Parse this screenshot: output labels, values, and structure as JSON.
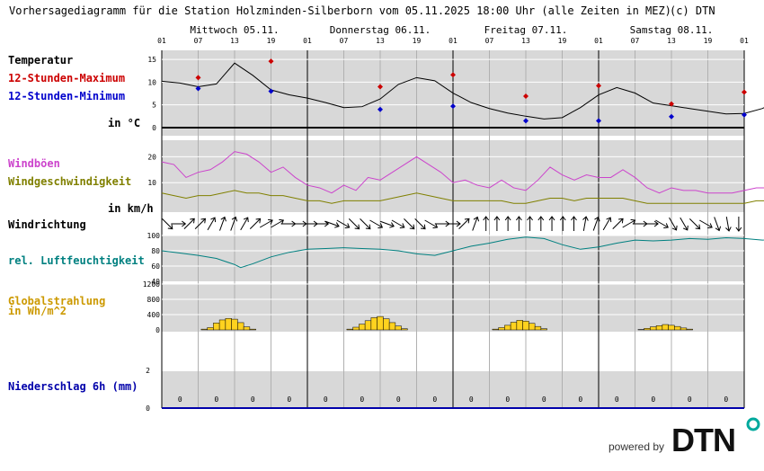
{
  "header": {
    "title": "Vorhersagediagramm für die Station Holzminden-Silberborn vom 05.11.2025 18:00 Uhr (alle Zeiten in MEZ)",
    "copyright": "(c) DTN"
  },
  "colors": {
    "temp": "#000000",
    "max": "#cc0000",
    "min": "#0000cc",
    "gust": "#cc44cc",
    "wind": "#808000",
    "humidity": "#008080",
    "radiation": "#ffd21f",
    "radiation_label": "#cc9900",
    "precip": "#0000aa",
    "panel": "#d8d8d8",
    "grid": "#ffffff",
    "dayline": "#000000",
    "hourline": "#b0b0b0"
  },
  "chart_data": {
    "type": "line",
    "x_ticks": [
      "01",
      "07",
      "13",
      "19",
      "01",
      "07",
      "13",
      "19",
      "01",
      "07",
      "13",
      "19",
      "01",
      "07",
      "13",
      "19",
      "01"
    ],
    "days": [
      "Mittwoch 05.11.",
      "Donnerstag 06.11.",
      "Freitag 07.11.",
      "Samstag 08.11."
    ],
    "temperature": {
      "label": "Temperatur",
      "unit": "in °C",
      "yticks": [
        "15",
        "10",
        "5",
        "0"
      ],
      "ylim": [
        -1,
        17
      ],
      "curve": [
        [
          1,
          10.2
        ],
        [
          4,
          9.8
        ],
        [
          7,
          9.0
        ],
        [
          10,
          9.6
        ],
        [
          13,
          14.2
        ],
        [
          16,
          11.5
        ],
        [
          19,
          8.3
        ],
        [
          22,
          7.2
        ],
        [
          25,
          6.5
        ],
        [
          28,
          5.5
        ],
        [
          31,
          4.4
        ],
        [
          34,
          4.6
        ],
        [
          37,
          6.3
        ],
        [
          40,
          9.5
        ],
        [
          43,
          11.0
        ],
        [
          46,
          10.3
        ],
        [
          49,
          7.6
        ],
        [
          52,
          5.5
        ],
        [
          55,
          4.2
        ],
        [
          58,
          3.2
        ],
        [
          61,
          2.5
        ],
        [
          64,
          1.9
        ],
        [
          67,
          2.2
        ],
        [
          70,
          4.4
        ],
        [
          73,
          7.2
        ],
        [
          76,
          8.8
        ],
        [
          79,
          7.6
        ],
        [
          82,
          5.4
        ],
        [
          85,
          4.8
        ],
        [
          88,
          4.2
        ],
        [
          91,
          3.6
        ],
        [
          94,
          3.0
        ],
        [
          97,
          3.1
        ],
        [
          100,
          4.2
        ],
        [
          103,
          6.3
        ],
        [
          106,
          7.4
        ],
        [
          109,
          6.8
        ],
        [
          112,
          6.5
        ],
        [
          115,
          6.2
        ],
        [
          118,
          5.8
        ],
        [
          121,
          6.1
        ]
      ],
      "max_label": "12-Stunden-Maximum",
      "max_points": [
        [
          7,
          11.0
        ],
        [
          19,
          14.6
        ],
        [
          37,
          9.0
        ],
        [
          49,
          11.6
        ],
        [
          61,
          6.9
        ],
        [
          73,
          9.2
        ],
        [
          85,
          5.2
        ],
        [
          97,
          7.8
        ]
      ],
      "min_label": "12-Stunden-Minimum",
      "min_points": [
        [
          7,
          8.6
        ],
        [
          19,
          8.0
        ],
        [
          37,
          4.0
        ],
        [
          49,
          4.7
        ],
        [
          61,
          1.5
        ],
        [
          73,
          1.5
        ],
        [
          85,
          2.4
        ],
        [
          97,
          2.8
        ]
      ]
    },
    "wind": {
      "gust_label": "Windböen",
      "speed_label": "Windgeschwindigkeit",
      "unit": "in km/h",
      "yticks": [
        "20",
        "10"
      ],
      "ylim": [
        0,
        25
      ],
      "gusts": [
        [
          1,
          18
        ],
        [
          3,
          17
        ],
        [
          5,
          12
        ],
        [
          7,
          14
        ],
        [
          9,
          15
        ],
        [
          11,
          18
        ],
        [
          13,
          22
        ],
        [
          15,
          21
        ],
        [
          17,
          18
        ],
        [
          19,
          14
        ],
        [
          21,
          16
        ],
        [
          23,
          12
        ],
        [
          25,
          9
        ],
        [
          27,
          8
        ],
        [
          29,
          6
        ],
        [
          31,
          9
        ],
        [
          33,
          7
        ],
        [
          35,
          12
        ],
        [
          37,
          11
        ],
        [
          39,
          14
        ],
        [
          41,
          17
        ],
        [
          43,
          20
        ],
        [
          45,
          17
        ],
        [
          47,
          14
        ],
        [
          49,
          10
        ],
        [
          51,
          11
        ],
        [
          53,
          9
        ],
        [
          55,
          8
        ],
        [
          57,
          11
        ],
        [
          59,
          8
        ],
        [
          61,
          7
        ],
        [
          63,
          11
        ],
        [
          65,
          16
        ],
        [
          67,
          13
        ],
        [
          69,
          11
        ],
        [
          71,
          13
        ],
        [
          73,
          12
        ],
        [
          75,
          12
        ],
        [
          77,
          15
        ],
        [
          79,
          12
        ],
        [
          81,
          8
        ],
        [
          83,
          6
        ],
        [
          85,
          8
        ],
        [
          87,
          7
        ],
        [
          89,
          7
        ],
        [
          91,
          6
        ],
        [
          93,
          6
        ],
        [
          95,
          6
        ],
        [
          97,
          7
        ],
        [
          99,
          8
        ],
        [
          101,
          8
        ],
        [
          103,
          10
        ],
        [
          105,
          12
        ],
        [
          107,
          10
        ],
        [
          109,
          10
        ],
        [
          111,
          9
        ],
        [
          113,
          8
        ],
        [
          115,
          8
        ],
        [
          117,
          8
        ],
        [
          119,
          8
        ],
        [
          121,
          8
        ]
      ],
      "speed": [
        [
          1,
          6
        ],
        [
          3,
          5
        ],
        [
          5,
          4
        ],
        [
          7,
          5
        ],
        [
          9,
          5
        ],
        [
          11,
          6
        ],
        [
          13,
          7
        ],
        [
          15,
          6
        ],
        [
          17,
          6
        ],
        [
          19,
          5
        ],
        [
          21,
          5
        ],
        [
          23,
          4
        ],
        [
          25,
          3
        ],
        [
          27,
          3
        ],
        [
          29,
          2
        ],
        [
          31,
          3
        ],
        [
          33,
          3
        ],
        [
          35,
          3
        ],
        [
          37,
          3
        ],
        [
          39,
          4
        ],
        [
          41,
          5
        ],
        [
          43,
          6
        ],
        [
          45,
          5
        ],
        [
          47,
          4
        ],
        [
          49,
          3
        ],
        [
          51,
          3
        ],
        [
          53,
          3
        ],
        [
          55,
          3
        ],
        [
          57,
          3
        ],
        [
          59,
          2
        ],
        [
          61,
          2
        ],
        [
          63,
          3
        ],
        [
          65,
          4
        ],
        [
          67,
          4
        ],
        [
          69,
          3
        ],
        [
          71,
          4
        ],
        [
          73,
          4
        ],
        [
          75,
          4
        ],
        [
          77,
          4
        ],
        [
          79,
          3
        ],
        [
          81,
          2
        ],
        [
          83,
          2
        ],
        [
          85,
          2
        ],
        [
          87,
          2
        ],
        [
          89,
          2
        ],
        [
          91,
          2
        ],
        [
          93,
          2
        ],
        [
          95,
          2
        ],
        [
          97,
          2
        ],
        [
          99,
          3
        ],
        [
          101,
          3
        ],
        [
          103,
          3
        ],
        [
          105,
          3
        ],
        [
          107,
          3
        ],
        [
          109,
          2
        ],
        [
          111,
          3
        ],
        [
          113,
          2
        ],
        [
          115,
          3
        ],
        [
          117,
          3
        ],
        [
          119,
          3
        ],
        [
          121,
          3
        ]
      ]
    },
    "wind_direction": {
      "label": "Windrichtung",
      "arrows_deg": [
        135,
        90,
        45,
        45,
        30,
        20,
        20,
        30,
        45,
        60,
        60,
        90,
        90,
        90,
        90,
        110,
        120,
        135,
        135,
        120,
        110,
        120,
        135,
        135,
        120,
        90,
        90,
        45,
        20,
        0,
        0,
        0,
        0,
        0,
        0,
        0,
        0,
        0,
        10,
        20,
        30,
        45,
        60,
        90,
        90,
        120,
        150,
        150,
        135,
        120,
        160,
        170,
        180
      ]
    },
    "humidity": {
      "label": "rel. Luftfeuchtigkeit",
      "yticks": [
        "100",
        "80",
        "60",
        "40"
      ],
      "ylim": [
        40,
        100
      ],
      "values": [
        [
          1,
          80
        ],
        [
          4,
          77
        ],
        [
          7,
          74
        ],
        [
          10,
          70
        ],
        [
          13,
          62
        ],
        [
          14,
          58
        ],
        [
          16,
          63
        ],
        [
          19,
          72
        ],
        [
          22,
          78
        ],
        [
          25,
          82
        ],
        [
          28,
          83
        ],
        [
          31,
          84
        ],
        [
          34,
          83
        ],
        [
          37,
          82
        ],
        [
          40,
          80
        ],
        [
          43,
          76
        ],
        [
          46,
          74
        ],
        [
          49,
          80
        ],
        [
          52,
          86
        ],
        [
          55,
          90
        ],
        [
          58,
          95
        ],
        [
          61,
          98
        ],
        [
          64,
          96
        ],
        [
          67,
          88
        ],
        [
          70,
          82
        ],
        [
          73,
          85
        ],
        [
          76,
          90
        ],
        [
          79,
          94
        ],
        [
          82,
          93
        ],
        [
          85,
          94
        ],
        [
          88,
          96
        ],
        [
          91,
          95
        ],
        [
          94,
          97
        ],
        [
          97,
          96
        ],
        [
          100,
          94
        ],
        [
          103,
          96
        ],
        [
          106,
          97
        ],
        [
          109,
          96
        ],
        [
          112,
          97
        ],
        [
          115,
          98
        ],
        [
          118,
          99
        ]
      ]
    },
    "radiation": {
      "label": "Globalstrahlung",
      "unit": "in Wh/m^2",
      "yticks": [
        "1200",
        "800",
        "400",
        "0"
      ],
      "ylim": [
        0,
        1200
      ],
      "bars": [
        [
          8,
          20
        ],
        [
          9,
          60
        ],
        [
          10,
          180
        ],
        [
          11,
          260
        ],
        [
          12,
          300
        ],
        [
          13,
          280
        ],
        [
          14,
          190
        ],
        [
          15,
          80
        ],
        [
          16,
          20
        ],
        [
          32,
          20
        ],
        [
          33,
          70
        ],
        [
          34,
          150
        ],
        [
          35,
          240
        ],
        [
          36,
          320
        ],
        [
          37,
          350
        ],
        [
          38,
          290
        ],
        [
          39,
          190
        ],
        [
          40,
          100
        ],
        [
          41,
          30
        ],
        [
          56,
          20
        ],
        [
          57,
          60
        ],
        [
          58,
          120
        ],
        [
          59,
          200
        ],
        [
          60,
          250
        ],
        [
          61,
          230
        ],
        [
          62,
          170
        ],
        [
          63,
          90
        ],
        [
          64,
          30
        ],
        [
          80,
          10
        ],
        [
          81,
          40
        ],
        [
          82,
          80
        ],
        [
          83,
          110
        ],
        [
          84,
          140
        ],
        [
          85,
          120
        ],
        [
          86,
          90
        ],
        [
          87,
          50
        ],
        [
          88,
          20
        ]
      ]
    },
    "precipitation": {
      "label": "Niederschlag 6h (mm)",
      "yticks": [
        "2",
        "0"
      ],
      "ylim": [
        0,
        4
      ],
      "values": [
        "0",
        "0",
        "0",
        "0",
        "0",
        "0",
        "0",
        "0",
        "0",
        "0",
        "0",
        "0",
        "0",
        "0",
        "0",
        "0"
      ]
    }
  },
  "footer": {
    "powered_by": "powered by",
    "brand": "DTN"
  }
}
